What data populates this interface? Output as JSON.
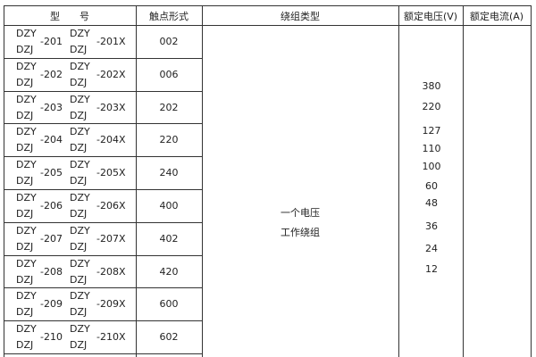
{
  "headers": [
    "型　　号",
    "触点形式",
    "绕组类型",
    "额定电压(V)",
    "额定电流(A)"
  ],
  "rows": [
    {
      "a": "DZY",
      "b": "DZJ",
      "n": "-201",
      "a2": "DZY",
      "b2": "DZJ",
      "n2": "-201X",
      "contact": "002"
    },
    {
      "a": "DZY",
      "b": "DZJ",
      "n": "-202",
      "a2": "DZY",
      "b2": "DZJ",
      "n2": "-202X",
      "contact": "006"
    },
    {
      "a": "DZY",
      "b": "DZJ",
      "n": "-203",
      "a2": "DZY",
      "b2": "DZJ",
      "n2": "-203X",
      "contact": "202"
    },
    {
      "a": "DZY",
      "b": "DZJ",
      "n": "-204",
      "a2": "DZY",
      "b2": "DZJ",
      "n2": "-204X",
      "contact": "220"
    },
    {
      "a": "DZY",
      "b": "DZJ",
      "n": "-205",
      "a2": "DZY",
      "b2": "DZJ",
      "n2": "-205X",
      "contact": "240"
    },
    {
      "a": "DZY",
      "b": "DZJ",
      "n": "-206",
      "a2": "DZY",
      "b2": "DZJ",
      "n2": "-206X",
      "contact": "400"
    },
    {
      "a": "DZY",
      "b": "DZJ",
      "n": "-207",
      "a2": "DZY",
      "b2": "DZJ",
      "n2": "-207X",
      "contact": "402"
    },
    {
      "a": "DZY",
      "b": "DZJ",
      "n": "-208",
      "a2": "DZY",
      "b2": "DZJ",
      "n2": "-208X",
      "contact": "420"
    },
    {
      "a": "DZY",
      "b": "DZJ",
      "n": "-209",
      "a2": "DZY",
      "b2": "DZJ",
      "n2": "-209X",
      "contact": "600"
    },
    {
      "a": "DZY",
      "b": "DZJ",
      "n": "-210",
      "a2": "DZY",
      "b2": "DZJ",
      "n2": "-210X",
      "contact": "602"
    }
  ],
  "winding": [
    "一个电压",
    "工作绕组"
  ],
  "voltages": [
    "380",
    "220",
    "127",
    "110",
    "100",
    "60",
    "48",
    "36",
    "24",
    "12"
  ]
}
